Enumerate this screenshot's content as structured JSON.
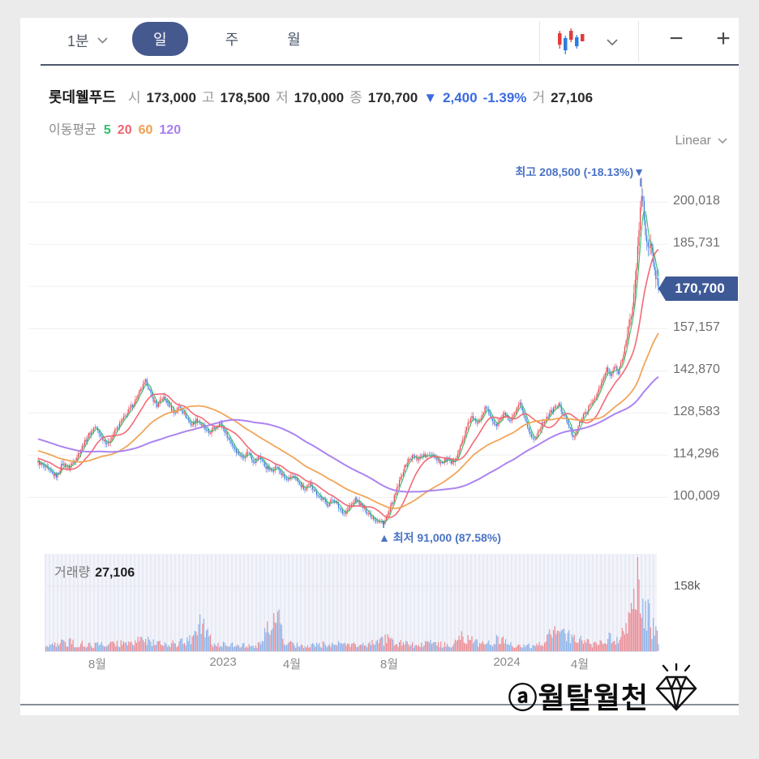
{
  "toolbar": {
    "interval": "1분",
    "tabs": [
      "일",
      "주",
      "월"
    ],
    "active_tab": 0,
    "chart_type_icon": "candlestick-icon",
    "zoom_out": "−",
    "zoom_in": "+"
  },
  "stock": {
    "name": "롯데웰푸드",
    "open_label": "시",
    "open": "173,000",
    "high_label": "고",
    "high": "178,500",
    "low_label": "저",
    "low": "170,000",
    "close_label": "종",
    "close": "170,700",
    "change_arrow": "▼",
    "change": "2,400",
    "change_pct": "-1.39%",
    "volume_label": "거",
    "volume": "27,106"
  },
  "ma": {
    "label": "이동평균",
    "periods": [
      {
        "text": "5",
        "color": "#2fbf64"
      },
      {
        "text": "20",
        "color": "#f0636e"
      },
      {
        "text": "60",
        "color": "#f0a050"
      },
      {
        "text": "120",
        "color": "#a87df0"
      }
    ]
  },
  "scale_selector": {
    "label": "Linear"
  },
  "annotations": {
    "high": "최고 208,500 (-18.13%)▼",
    "low": "▲ 최저 91,000 (87.58%)"
  },
  "badge": {
    "value": "170,700"
  },
  "volume_panel": {
    "label": "거래량",
    "value": "27,106",
    "axis_label": "158k"
  },
  "watermark": {
    "text": "ⓐ월탈월천",
    "icon": "diamond-icon"
  },
  "colors": {
    "up": "#e8414d",
    "down": "#3577de",
    "vol_up": "#ec8a92",
    "vol_down": "#8cb2e8",
    "ma5": "#2fbf64",
    "ma20": "#f0636e",
    "ma60": "#f0a050",
    "ma120": "#a87df0",
    "accent_blue": "#3b6ae0",
    "annotation": "#4a72c4",
    "badge_bg": "#3d5a96",
    "pill_bg": "#46598e",
    "grid": "#efefef"
  },
  "chart_data": {
    "type": "candlestick",
    "title": "롯데웰푸드 일봉 차트",
    "legend": [
      "이동평균 5",
      "이동평균 20",
      "이동평균 60",
      "이동평균 120"
    ],
    "ohlc_today": {
      "open": 173000,
      "high": 178500,
      "low": 170000,
      "close": 170700,
      "change": -2400,
      "change_pct": -1.39,
      "volume": 27106
    },
    "high_point": {
      "label": "최고",
      "price": 208500,
      "pct_from_high": "-18.13%"
    },
    "low_point": {
      "label": "최저",
      "price": 91000,
      "pct_from_low": "87.58%"
    },
    "ma_periods": [
      5,
      20,
      60,
      120
    ],
    "scale": "Linear",
    "y_axis": [
      {
        "label": "200,018",
        "price": 200018
      },
      {
        "label": "185,731",
        "price": 185731
      },
      {
        "label": "157,157",
        "price": 157157
      },
      {
        "label": "142,870",
        "price": 142870
      },
      {
        "label": "128,583",
        "price": 128583
      },
      {
        "label": "114,296",
        "price": 114296
      },
      {
        "label": "100,009",
        "price": 100009
      }
    ],
    "y_gridline_prices": [
      100009,
      114296,
      128583,
      142870,
      157157,
      171444,
      185731,
      200018
    ],
    "x_axis": [
      "8월",
      "2023",
      "4월",
      "8월",
      "2024",
      "4월"
    ],
    "volume_axis_max_label": "158k",
    "price_path": [
      [
        22,
        112000
      ],
      [
        30,
        110200
      ],
      [
        38,
        108200
      ],
      [
        45,
        107200
      ],
      [
        52,
        111500
      ],
      [
        60,
        110000
      ],
      [
        68,
        113000
      ],
      [
        76,
        117000
      ],
      [
        84,
        121000
      ],
      [
        92,
        124000
      ],
      [
        100,
        120500
      ],
      [
        108,
        118000
      ],
      [
        116,
        122000
      ],
      [
        124,
        125500
      ],
      [
        132,
        128500
      ],
      [
        140,
        132000
      ],
      [
        148,
        136000
      ],
      [
        155,
        139500
      ],
      [
        162,
        134000
      ],
      [
        169,
        131000
      ],
      [
        176,
        134000
      ],
      [
        183,
        131500
      ],
      [
        190,
        128500
      ],
      [
        197,
        131000
      ],
      [
        204,
        127500
      ],
      [
        211,
        124500
      ],
      [
        218,
        126500
      ],
      [
        225,
        124000
      ],
      [
        232,
        121500
      ],
      [
        239,
        123500
      ],
      [
        246,
        125500
      ],
      [
        253,
        122000
      ],
      [
        260,
        118500
      ],
      [
        267,
        115500
      ],
      [
        274,
        113500
      ],
      [
        281,
        115500
      ],
      [
        288,
        112000
      ],
      [
        295,
        114000
      ],
      [
        302,
        110500
      ],
      [
        309,
        109000
      ],
      [
        316,
        110500
      ],
      [
        323,
        107500
      ],
      [
        330,
        105500
      ],
      [
        337,
        107500
      ],
      [
        344,
        104500
      ],
      [
        351,
        102500
      ],
      [
        358,
        104500
      ],
      [
        365,
        101500
      ],
      [
        372,
        99500
      ],
      [
        379,
        97500
      ],
      [
        386,
        99500
      ],
      [
        393,
        96500
      ],
      [
        400,
        94500
      ],
      [
        407,
        97000
      ],
      [
        414,
        99500
      ],
      [
        421,
        97000
      ],
      [
        428,
        95000
      ],
      [
        435,
        93200
      ],
      [
        442,
        91800
      ],
      [
        448,
        91300
      ],
      [
        454,
        94500
      ],
      [
        460,
        99000
      ],
      [
        466,
        104000
      ],
      [
        472,
        109000
      ],
      [
        478,
        112500
      ],
      [
        484,
        114000
      ],
      [
        490,
        113000
      ],
      [
        496,
        114500
      ],
      [
        502,
        113500
      ],
      [
        508,
        115000
      ],
      [
        514,
        113000
      ],
      [
        520,
        111500
      ],
      [
        526,
        113000
      ],
      [
        532,
        111200
      ],
      [
        538,
        114000
      ],
      [
        544,
        118000
      ],
      [
        550,
        123000
      ],
      [
        556,
        127500
      ],
      [
        562,
        125000
      ],
      [
        568,
        127500
      ],
      [
        574,
        130500
      ],
      [
        580,
        127500
      ],
      [
        586,
        124000
      ],
      [
        592,
        126500
      ],
      [
        598,
        128500
      ],
      [
        604,
        125000
      ],
      [
        610,
        128500
      ],
      [
        616,
        131500
      ],
      [
        622,
        127500
      ],
      [
        628,
        121500
      ],
      [
        634,
        119500
      ],
      [
        640,
        123000
      ],
      [
        646,
        126000
      ],
      [
        652,
        128000
      ],
      [
        658,
        130000
      ],
      [
        664,
        131500
      ],
      [
        670,
        128000
      ],
      [
        676,
        124500
      ],
      [
        682,
        120500
      ],
      [
        688,
        124000
      ],
      [
        694,
        127500
      ],
      [
        700,
        130000
      ],
      [
        706,
        132500
      ],
      [
        712,
        135500
      ],
      [
        718,
        139500
      ],
      [
        723,
        143500
      ],
      [
        728,
        141000
      ],
      [
        733,
        144500
      ],
      [
        737,
        142000
      ],
      [
        741,
        146000
      ],
      [
        745,
        150500
      ],
      [
        749,
        155000
      ],
      [
        753,
        161000
      ],
      [
        757,
        169500
      ],
      [
        760,
        179000
      ],
      [
        763,
        190000
      ],
      [
        765,
        200000
      ],
      [
        767,
        204500
      ],
      [
        769,
        196000
      ],
      [
        771,
        190000
      ],
      [
        773,
        185000
      ],
      [
        775,
        183000
      ],
      [
        777,
        186500
      ],
      [
        779,
        181500
      ],
      [
        781,
        178000
      ],
      [
        784,
        175000
      ],
      [
        787,
        171500
      ]
    ],
    "volume_profile": [
      [
        22,
        0.06
      ],
      [
        60,
        0.1
      ],
      [
        90,
        0.06
      ],
      [
        120,
        0.09
      ],
      [
        150,
        0.12
      ],
      [
        180,
        0.07
      ],
      [
        210,
        0.12
      ],
      [
        224,
        0.3
      ],
      [
        238,
        0.09
      ],
      [
        262,
        0.07
      ],
      [
        290,
        0.05
      ],
      [
        318,
        0.4
      ],
      [
        326,
        0.1
      ],
      [
        350,
        0.05
      ],
      [
        380,
        0.08
      ],
      [
        400,
        0.09
      ],
      [
        420,
        0.07
      ],
      [
        440,
        0.1
      ],
      [
        455,
        0.14
      ],
      [
        470,
        0.08
      ],
      [
        490,
        0.07
      ],
      [
        510,
        0.09
      ],
      [
        530,
        0.06
      ],
      [
        545,
        0.16
      ],
      [
        560,
        0.11
      ],
      [
        575,
        0.08
      ],
      [
        590,
        0.13
      ],
      [
        605,
        0.07
      ],
      [
        620,
        0.05
      ],
      [
        640,
        0.07
      ],
      [
        655,
        0.18
      ],
      [
        670,
        0.21
      ],
      [
        685,
        0.13
      ],
      [
        700,
        0.09
      ],
      [
        715,
        0.08
      ],
      [
        728,
        0.17
      ],
      [
        736,
        0.13
      ],
      [
        744,
        0.2
      ],
      [
        750,
        0.28
      ],
      [
        755,
        0.45
      ],
      [
        759,
        0.72
      ],
      [
        762,
        0.95
      ],
      [
        765,
        0.78
      ],
      [
        768,
        0.6
      ],
      [
        771,
        0.42
      ],
      [
        774,
        0.52
      ],
      [
        777,
        0.33
      ],
      [
        780,
        0.26
      ],
      [
        784,
        0.18
      ],
      [
        787,
        0.12
      ]
    ]
  }
}
